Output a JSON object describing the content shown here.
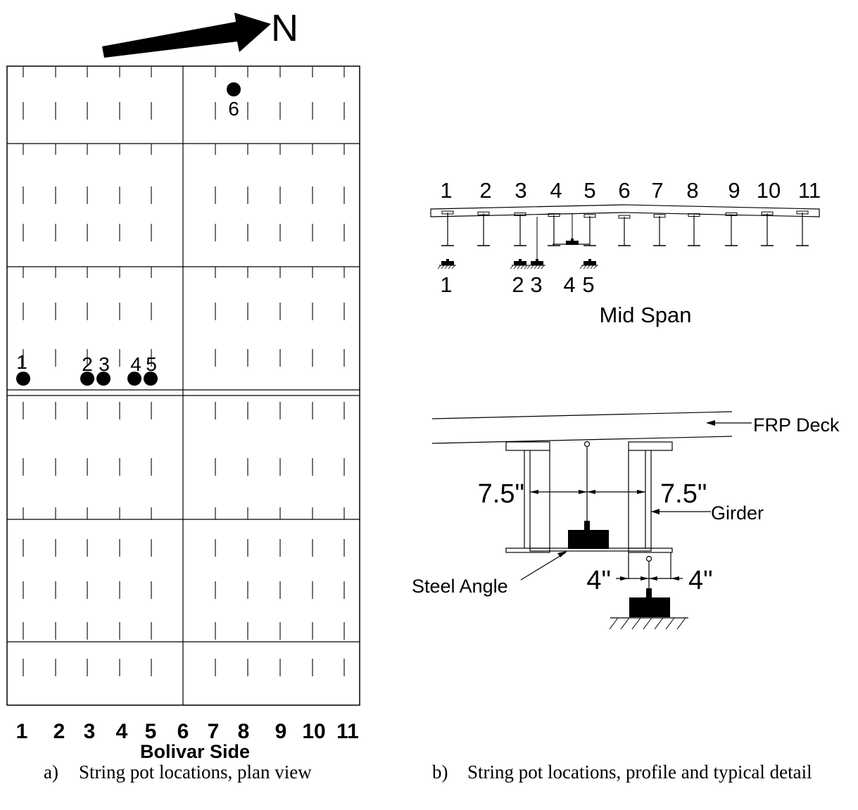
{
  "north_label": "N",
  "plan": {
    "girder_numbers": [
      "1",
      "2",
      "3",
      "4",
      "5",
      "6",
      "7",
      "8",
      "9",
      "10",
      "11"
    ],
    "side_label": "Bolivar Side",
    "pot_labels": [
      "1",
      "2",
      "3",
      "4",
      "5",
      "6"
    ]
  },
  "profile": {
    "girder_numbers": [
      "1",
      "2",
      "3",
      "4",
      "5",
      "6",
      "7",
      "8",
      "9",
      "10",
      "11"
    ],
    "pot_labels": [
      "1",
      "2",
      "3",
      "4",
      "5"
    ],
    "title": "Mid Span"
  },
  "detail": {
    "deck_label": "FRP Deck",
    "girder_label": "Girder",
    "angle_label": "Steel Angle",
    "dim_left": "7.5\"",
    "dim_right": "7.5\"",
    "dim_lower_left": "4\"",
    "dim_lower_right": "4\""
  },
  "captions": {
    "a_letter": "a)",
    "a_text": "String pot locations, plan view",
    "b_letter": "b)",
    "b_text": "String pot locations, profile and typical detail"
  }
}
